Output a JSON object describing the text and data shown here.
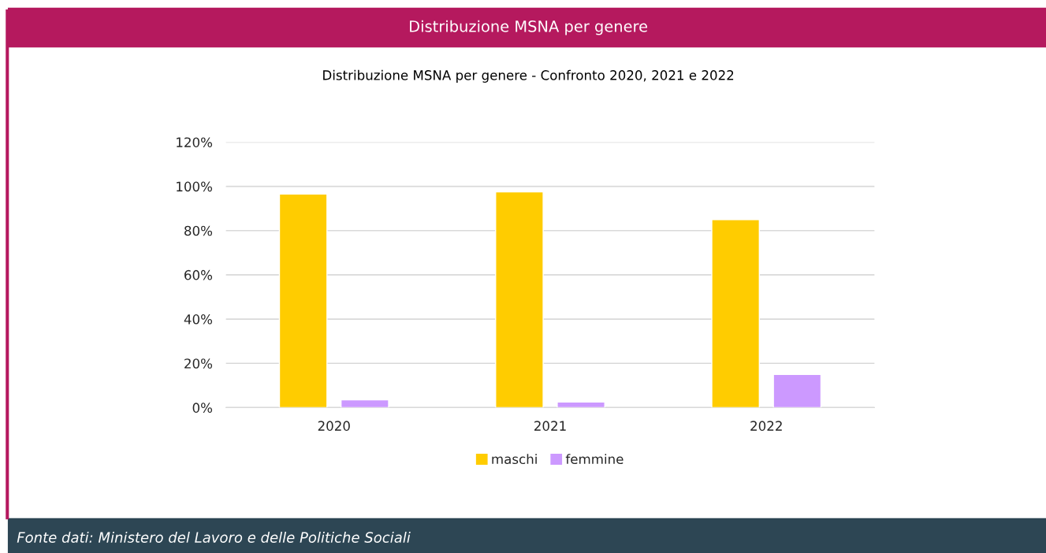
{
  "chart_data": {
    "type": "bar",
    "title": "Distribuzione MSNA per genere",
    "subtitle": "Distribuzione MSNA per genere - Confronto 2020, 2021 e 2022",
    "categories": [
      "2020",
      "2021",
      "2022"
    ],
    "series": [
      {
        "name": "maschi",
        "color": "#ffcc00",
        "values": [
          96.5,
          97.5,
          85
        ]
      },
      {
        "name": "femmine",
        "color": "#cc99ff",
        "values": [
          3.5,
          2.5,
          15
        ]
      }
    ],
    "ylim": [
      0,
      120
    ],
    "yticks": [
      {
        "value": 0,
        "label": "0%"
      },
      {
        "value": 20,
        "label": "20%"
      },
      {
        "value": 40,
        "label": "40%"
      },
      {
        "value": 60,
        "label": "60%"
      },
      {
        "value": 80,
        "label": "80%"
      },
      {
        "value": 100,
        "label": "100%"
      },
      {
        "value": 120,
        "label": "120%"
      }
    ],
    "grid": "y",
    "legend": "bottom",
    "annotations": [
      "Fonte dati: Ministero del Lavoro e delle Politiche Sociali"
    ]
  }
}
